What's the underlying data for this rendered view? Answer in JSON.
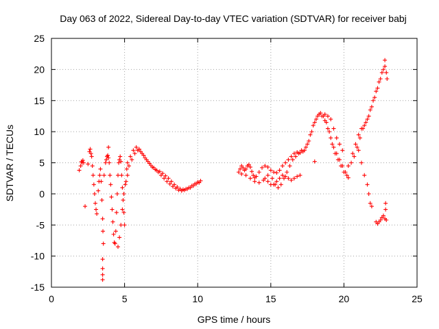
{
  "chart_data": {
    "type": "scatter",
    "title": "Day 063 of 2022, Sidereal Day-to-day VTEC variation (SDTVAR) for receiver babj",
    "xlabel": "GPS time / hours",
    "ylabel": "SDTVAR / TECUs",
    "xlim": [
      0,
      25
    ],
    "ylim": [
      -15,
      25
    ],
    "xticks": [
      0,
      5,
      10,
      15,
      20,
      25
    ],
    "yticks": [
      -15,
      -10,
      -5,
      0,
      5,
      10,
      15,
      20,
      25
    ],
    "grid": true,
    "marker": "plus",
    "series_color": "#ff0000",
    "series": [
      {
        "name": "SDTVAR",
        "points": [
          [
            1.9,
            3.8
          ],
          [
            2.0,
            4.5
          ],
          [
            2.05,
            5.2
          ],
          [
            2.1,
            5.0
          ],
          [
            2.15,
            5.4
          ],
          [
            2.2,
            5.0
          ],
          [
            2.3,
            -2.0
          ],
          [
            2.5,
            4.8
          ],
          [
            2.6,
            6.8
          ],
          [
            2.65,
            7.2
          ],
          [
            2.7,
            6.5
          ],
          [
            2.75,
            6.0
          ],
          [
            2.8,
            4.5
          ],
          [
            2.85,
            3.0
          ],
          [
            2.9,
            1.5
          ],
          [
            2.95,
            0.0
          ],
          [
            3.0,
            -1.5
          ],
          [
            3.05,
            -2.5
          ],
          [
            3.1,
            -3.2
          ],
          [
            3.2,
            0.5
          ],
          [
            3.25,
            2.0
          ],
          [
            3.3,
            3.0
          ],
          [
            3.35,
            4.0
          ],
          [
            3.4,
            2.0
          ],
          [
            3.45,
            -1.0
          ],
          [
            3.5,
            -4.0
          ],
          [
            3.52,
            -6.0
          ],
          [
            3.55,
            -8.0
          ],
          [
            3.5,
            -10.5
          ],
          [
            3.5,
            -12.0
          ],
          [
            3.5,
            -13.0
          ],
          [
            3.5,
            -13.8
          ],
          [
            3.6,
            3.0
          ],
          [
            3.7,
            5.0
          ],
          [
            3.75,
            5.5
          ],
          [
            3.8,
            6.0
          ],
          [
            3.85,
            6.2
          ],
          [
            3.9,
            7.5
          ],
          [
            3.9,
            5.8
          ],
          [
            3.95,
            5.0
          ],
          [
            4.0,
            3.0
          ],
          [
            4.05,
            1.5
          ],
          [
            4.1,
            -0.5
          ],
          [
            4.15,
            -2.5
          ],
          [
            4.2,
            -4.5
          ],
          [
            4.25,
            -6.5
          ],
          [
            4.3,
            -7.8
          ],
          [
            4.35,
            -8.0
          ],
          [
            4.4,
            -6.0
          ],
          [
            4.45,
            -3.0
          ],
          [
            4.5,
            0.0
          ],
          [
            4.55,
            3.0
          ],
          [
            4.6,
            5.0
          ],
          [
            4.65,
            5.5
          ],
          [
            4.7,
            6.0
          ],
          [
            4.75,
            5.2
          ],
          [
            4.8,
            3.0
          ],
          [
            4.85,
            1.0
          ],
          [
            4.9,
            -1.0
          ],
          [
            4.95,
            -3.0
          ],
          [
            5.0,
            -5.0
          ],
          [
            4.55,
            -8.5
          ],
          [
            4.65,
            -7.0
          ],
          [
            4.75,
            -5.0
          ],
          [
            4.85,
            -2.5
          ],
          [
            4.95,
            0.0
          ],
          [
            5.05,
            1.5
          ],
          [
            5.1,
            2.0
          ],
          [
            5.15,
            4.0
          ],
          [
            5.2,
            3.0
          ],
          [
            5.2,
            5.0
          ],
          [
            5.4,
            6.0
          ],
          [
            5.6,
            7.0
          ],
          [
            5.8,
            7.5
          ],
          [
            6.0,
            7.2
          ],
          [
            6.2,
            6.5
          ],
          [
            6.4,
            5.8
          ],
          [
            6.6,
            5.2
          ],
          [
            6.8,
            4.6
          ],
          [
            7.0,
            4.2
          ],
          [
            7.2,
            3.8
          ],
          [
            7.4,
            3.6
          ],
          [
            7.6,
            3.3
          ],
          [
            7.8,
            2.9
          ],
          [
            8.0,
            2.5
          ],
          [
            8.2,
            2.0
          ],
          [
            8.4,
            1.5
          ],
          [
            8.6,
            1.1
          ],
          [
            8.8,
            0.8
          ],
          [
            9.0,
            0.7
          ],
          [
            9.2,
            0.8
          ],
          [
            9.4,
            1.0
          ],
          [
            9.6,
            1.3
          ],
          [
            9.8,
            1.6
          ],
          [
            10.0,
            1.9
          ],
          [
            10.2,
            2.1
          ],
          [
            5.3,
            4.5
          ],
          [
            5.5,
            5.5
          ],
          [
            5.7,
            6.5
          ],
          [
            5.9,
            7.0
          ],
          [
            6.1,
            6.8
          ],
          [
            6.3,
            6.2
          ],
          [
            6.5,
            5.5
          ],
          [
            6.7,
            4.9
          ],
          [
            6.9,
            4.3
          ],
          [
            7.1,
            3.9
          ],
          [
            7.3,
            3.5
          ],
          [
            7.5,
            3.0
          ],
          [
            7.7,
            2.5
          ],
          [
            7.9,
            2.0
          ],
          [
            8.1,
            1.6
          ],
          [
            8.3,
            1.2
          ],
          [
            8.5,
            0.9
          ],
          [
            8.7,
            0.6
          ],
          [
            8.9,
            0.5
          ],
          [
            9.1,
            0.6
          ],
          [
            9.3,
            0.8
          ],
          [
            9.5,
            1.0
          ],
          [
            9.7,
            1.3
          ],
          [
            9.9,
            1.6
          ],
          [
            10.1,
            1.8
          ],
          [
            12.8,
            3.5
          ],
          [
            12.9,
            4.0
          ],
          [
            13.0,
            4.5
          ],
          [
            13.1,
            4.2
          ],
          [
            13.2,
            3.8
          ],
          [
            13.3,
            4.0
          ],
          [
            13.4,
            4.5
          ],
          [
            13.5,
            4.7
          ],
          [
            13.6,
            4.3
          ],
          [
            13.7,
            3.6
          ],
          [
            13.8,
            3.0
          ],
          [
            13.9,
            2.6
          ],
          [
            14.0,
            2.8
          ],
          [
            14.2,
            3.5
          ],
          [
            14.4,
            4.2
          ],
          [
            14.6,
            4.5
          ],
          [
            14.8,
            4.3
          ],
          [
            15.0,
            3.8
          ],
          [
            15.2,
            3.5
          ],
          [
            15.4,
            3.4
          ],
          [
            15.6,
            3.8
          ],
          [
            15.8,
            4.5
          ],
          [
            16.0,
            5.0
          ],
          [
            16.2,
            5.5
          ],
          [
            16.4,
            6.0
          ],
          [
            16.6,
            6.5
          ],
          [
            16.8,
            6.7
          ],
          [
            17.0,
            6.6
          ],
          [
            17.2,
            6.8
          ],
          [
            17.4,
            7.5
          ],
          [
            17.6,
            8.5
          ],
          [
            17.8,
            10.0
          ],
          [
            18.0,
            11.5
          ],
          [
            18.2,
            12.5
          ],
          [
            18.4,
            13.0
          ],
          [
            18.6,
            12.5
          ],
          [
            18.8,
            11.5
          ],
          [
            19.0,
            10.0
          ],
          [
            19.2,
            8.0
          ],
          [
            19.4,
            6.5
          ],
          [
            19.6,
            5.5
          ],
          [
            19.8,
            4.5
          ],
          [
            20.0,
            3.5
          ],
          [
            20.2,
            3.0
          ],
          [
            20.3,
            2.6
          ],
          [
            13.0,
            3.2
          ],
          [
            13.3,
            3.0
          ],
          [
            13.6,
            2.5
          ],
          [
            13.9,
            2.0
          ],
          [
            14.2,
            1.8
          ],
          [
            14.5,
            2.2
          ],
          [
            14.8,
            3.0
          ],
          [
            15.1,
            2.5
          ],
          [
            15.3,
            1.5
          ],
          [
            15.5,
            1.0
          ],
          [
            15.7,
            1.5
          ],
          [
            15.9,
            2.5
          ],
          [
            16.1,
            3.5
          ],
          [
            16.3,
            4.5
          ],
          [
            16.5,
            5.5
          ],
          [
            16.7,
            6.0
          ],
          [
            16.9,
            6.5
          ],
          [
            17.1,
            7.0
          ],
          [
            17.3,
            7.0
          ],
          [
            17.5,
            8.0
          ],
          [
            17.7,
            9.5
          ],
          [
            17.9,
            11.0
          ],
          [
            18.1,
            12.0
          ],
          [
            18.3,
            12.8
          ],
          [
            18.5,
            12.5
          ],
          [
            18.7,
            11.8
          ],
          [
            18.9,
            10.5
          ],
          [
            19.1,
            9.0
          ],
          [
            19.3,
            7.5
          ],
          [
            19.5,
            6.5
          ],
          [
            19.7,
            5.5
          ],
          [
            19.9,
            4.5
          ],
          [
            20.1,
            3.5
          ],
          [
            14.6,
            2.5
          ],
          [
            14.8,
            2.0
          ],
          [
            15.0,
            1.5
          ],
          [
            15.2,
            1.5
          ],
          [
            15.4,
            2.0
          ],
          [
            15.6,
            2.5
          ],
          [
            15.8,
            3.0
          ],
          [
            16.0,
            2.8
          ],
          [
            16.2,
            2.5
          ],
          [
            16.4,
            2.2
          ],
          [
            16.6,
            2.5
          ],
          [
            16.8,
            2.8
          ],
          [
            17.0,
            3.0
          ],
          [
            18.0,
            5.2
          ],
          [
            18.7,
            12.8
          ],
          [
            18.9,
            12.5
          ],
          [
            19.1,
            12.0
          ],
          [
            19.3,
            10.5
          ],
          [
            19.5,
            9.0
          ],
          [
            19.7,
            8.0
          ],
          [
            19.9,
            7.0
          ],
          [
            20.3,
            4.5
          ],
          [
            20.5,
            5.0
          ],
          [
            20.7,
            6.0
          ],
          [
            20.9,
            7.5
          ],
          [
            21.1,
            9.0
          ],
          [
            21.3,
            10.5
          ],
          [
            21.5,
            11.5
          ],
          [
            21.7,
            12.5
          ],
          [
            21.9,
            14.0
          ],
          [
            22.1,
            15.5
          ],
          [
            22.3,
            17.0
          ],
          [
            22.5,
            18.5
          ],
          [
            22.7,
            20.0
          ],
          [
            22.8,
            21.5
          ],
          [
            22.9,
            19.5
          ],
          [
            22.95,
            18.5
          ],
          [
            20.6,
            6.5
          ],
          [
            20.8,
            8.0
          ],
          [
            21.0,
            9.5
          ],
          [
            21.2,
            10.5
          ],
          [
            21.4,
            11.0
          ],
          [
            21.6,
            12.0
          ],
          [
            21.8,
            13.5
          ],
          [
            22.0,
            15.0
          ],
          [
            22.2,
            16.5
          ],
          [
            22.4,
            18.0
          ],
          [
            22.6,
            19.5
          ],
          [
            22.8,
            20.5
          ],
          [
            21.0,
            7.0
          ],
          [
            21.2,
            5.0
          ],
          [
            21.4,
            3.0
          ],
          [
            21.6,
            1.5
          ],
          [
            21.7,
            0.0
          ],
          [
            21.8,
            -1.5
          ],
          [
            21.9,
            -2.0
          ],
          [
            22.2,
            -4.5
          ],
          [
            22.3,
            -4.8
          ],
          [
            22.4,
            -4.5
          ],
          [
            22.5,
            -4.2
          ],
          [
            22.6,
            -3.8
          ],
          [
            22.7,
            -3.5
          ],
          [
            22.8,
            -4.0
          ],
          [
            22.85,
            -2.5
          ],
          [
            22.85,
            -1.5
          ],
          [
            22.9,
            -4.2
          ]
        ]
      }
    ]
  }
}
